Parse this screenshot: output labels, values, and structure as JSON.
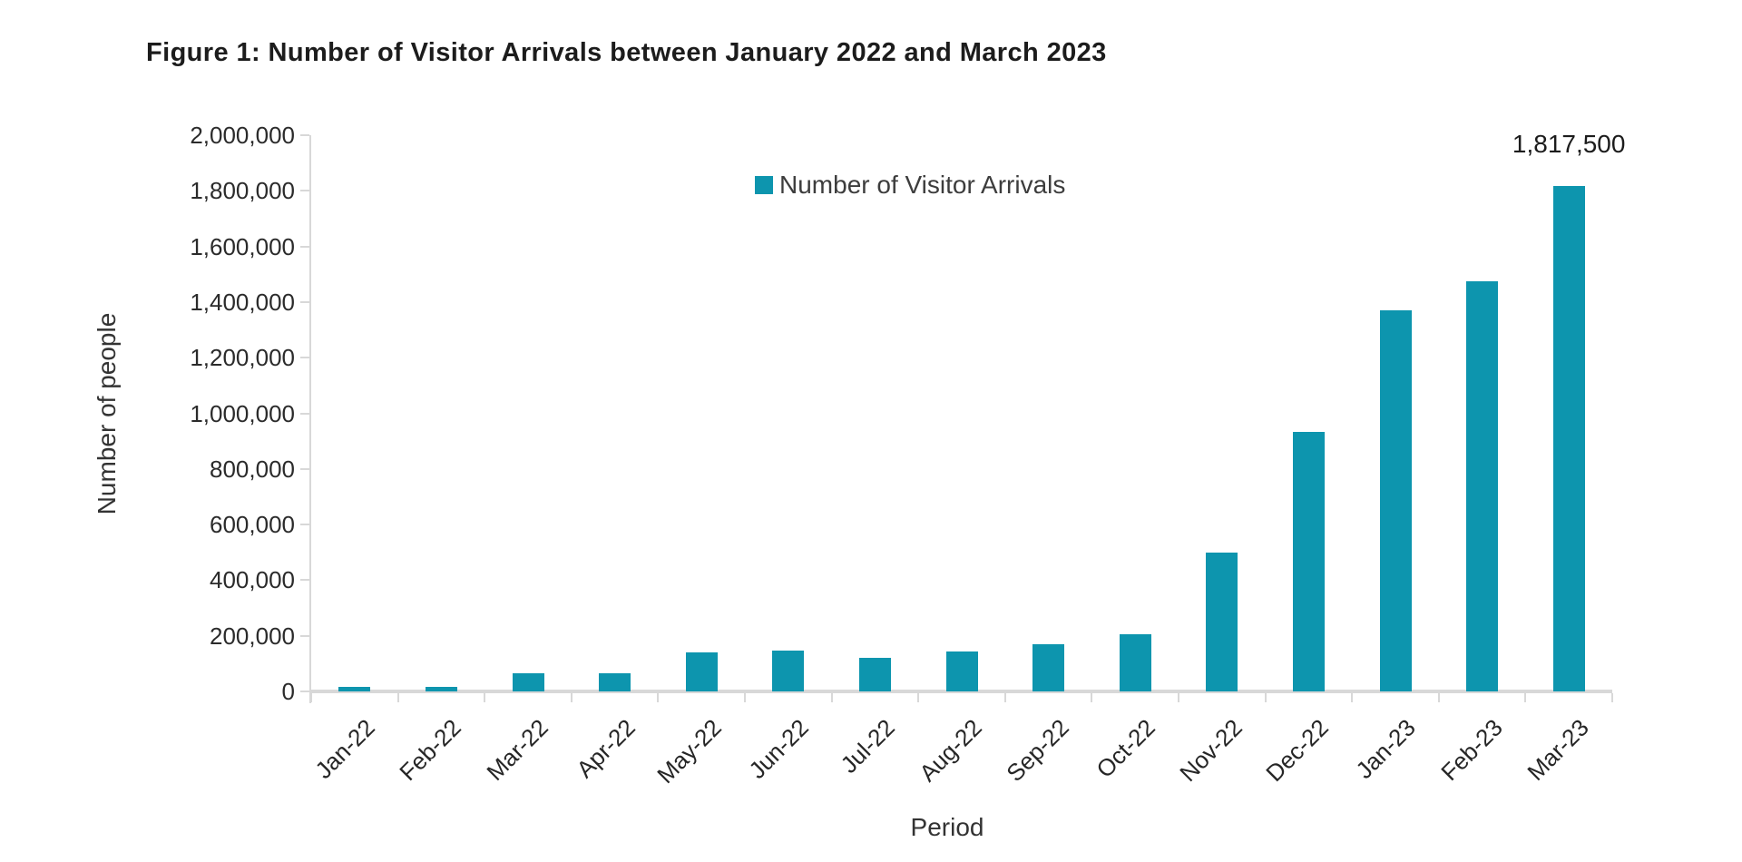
{
  "title": "Figure 1: Number of Visitor Arrivals between January 2022 and March 2023",
  "legend": {
    "label": "Number of Visitor Arrivals"
  },
  "colors": {
    "bar": "#0d95ae",
    "axis": "#d8d8d8",
    "title_text": "#1c1c1c",
    "axis_text": "#2b2b2b"
  },
  "chart_data": {
    "type": "bar",
    "title": "Figure 1: Number of Visitor Arrivals between January 2022 and March 2023",
    "categories": [
      "Jan-22",
      "Feb-22",
      "Mar-22",
      "Apr-22",
      "May-22",
      "Jun-22",
      "Jul-22",
      "Aug-22",
      "Sep-22",
      "Oct-22",
      "Nov-22",
      "Dec-22",
      "Jan-23",
      "Feb-23",
      "Mar-23"
    ],
    "values": [
      17766,
      16719,
      66121,
      66121,
      139548,
      147046,
      120430,
      144578,
      169902,
      206641,
      498646,
      934599,
      1370114,
      1475300,
      1817500
    ],
    "series_name": "Number of Visitor Arrivals",
    "xlabel": "Period",
    "ylabel": "Number of people",
    "ylim": [
      0,
      2000000
    ],
    "ytick_step": 200000,
    "ytick_labels": [
      "0",
      "200,000",
      "400,000",
      "600,000",
      "800,000",
      "1,000,000",
      "1,200,000",
      "1,400,000",
      "1,600,000",
      "1,800,000",
      "2,000,000"
    ],
    "grid": false,
    "legend_position": "top-center",
    "data_label": {
      "category": "Mar-23",
      "text": "1,817,500"
    }
  }
}
